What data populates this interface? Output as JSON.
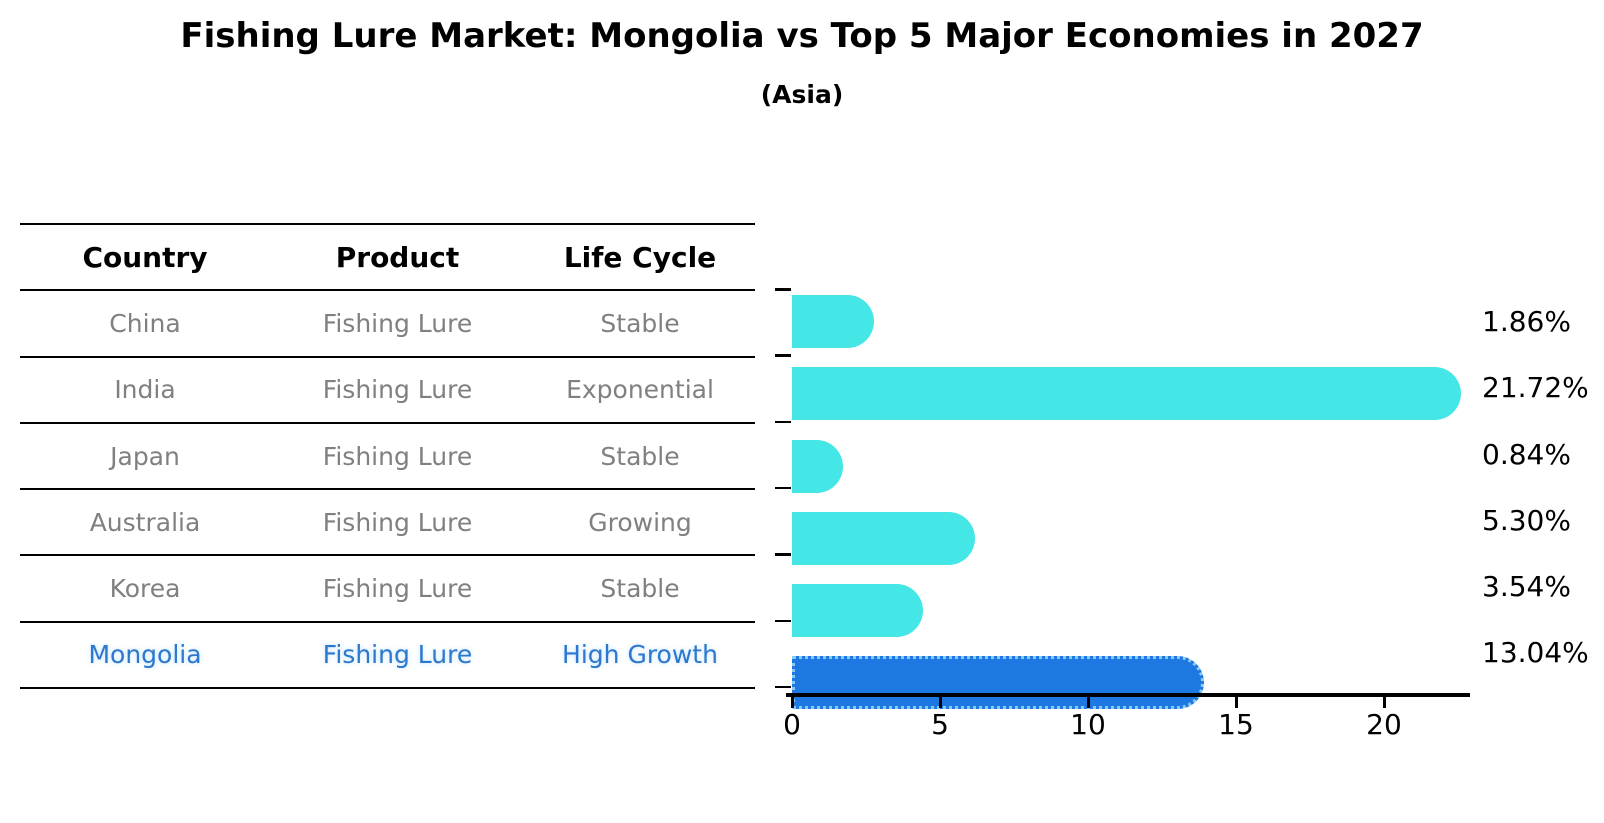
{
  "title": "Fishing Lure Market: Mongolia vs Top 5 Major Economies in 2027",
  "subtitle": "(Asia)",
  "table": {
    "headers": [
      "Country",
      "Product",
      "Life Cycle"
    ],
    "rows": [
      {
        "country": "China",
        "product": "Fishing Lure",
        "life_cycle": "Stable",
        "highlight": false
      },
      {
        "country": "India",
        "product": "Fishing Lure",
        "life_cycle": "Exponential",
        "highlight": false
      },
      {
        "country": "Japan",
        "product": "Fishing Lure",
        "life_cycle": "Stable",
        "highlight": false
      },
      {
        "country": "Australia",
        "product": "Fishing Lure",
        "life_cycle": "Growing",
        "highlight": false
      },
      {
        "country": "Korea",
        "product": "Fishing Lure",
        "life_cycle": "Stable",
        "highlight": false
      },
      {
        "country": "Mongolia",
        "product": "Fishing Lure",
        "life_cycle": "High Growth",
        "highlight": true
      }
    ]
  },
  "chart_data": {
    "type": "bar",
    "orientation": "horizontal",
    "title": "Fishing Lure Market: Mongolia vs Top 5 Major Economies in 2027",
    "subtitle": "(Asia)",
    "categories": [
      "China",
      "India",
      "Japan",
      "Australia",
      "Korea",
      "Mongolia"
    ],
    "values": [
      1.86,
      21.72,
      0.84,
      5.3,
      3.54,
      13.04
    ],
    "value_labels": [
      "1.86%",
      "21.72%",
      "0.84%",
      "5.30%",
      "3.54%",
      "13.04%"
    ],
    "xlim": [
      0,
      22.9
    ],
    "x_ticks": [
      0,
      5,
      10,
      15,
      20
    ],
    "grid": false,
    "legend": "none",
    "bar_color": "#45e6e6",
    "highlight_index": 5,
    "highlight_color": "#1d78e2",
    "highlight_border_color": "#8cc9f2"
  },
  "colors": {
    "bar": "#45e6e6",
    "highlight_bar": "#1d78e2",
    "highlight_border": "#8cc9f2",
    "highlight_text": "#2d78cc",
    "row_text": "#808080",
    "heading_text": "#000000",
    "axis": "#000000"
  }
}
